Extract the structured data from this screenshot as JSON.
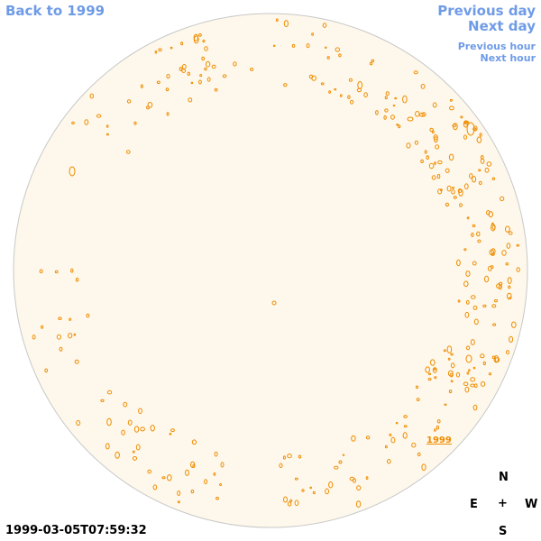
{
  "nav": {
    "back_label": "Back to 1999",
    "prev_day_label": "Previous day",
    "next_day_label": "Next day",
    "prev_hour_label": "Previous hour",
    "next_hour_label": "Next hour"
  },
  "timestamp": "1999-03-05T07:59:32",
  "compass": {
    "north": "N",
    "east": "E",
    "center": "+",
    "west": "W",
    "south": "S"
  },
  "disk": {
    "year_label": "1999",
    "background_color": "#fdf8eb",
    "edge_color": "#c8c8c8",
    "contour_color": "#f08c00"
  },
  "colors": {
    "nav": "#6f9be6",
    "text": "#000000"
  }
}
